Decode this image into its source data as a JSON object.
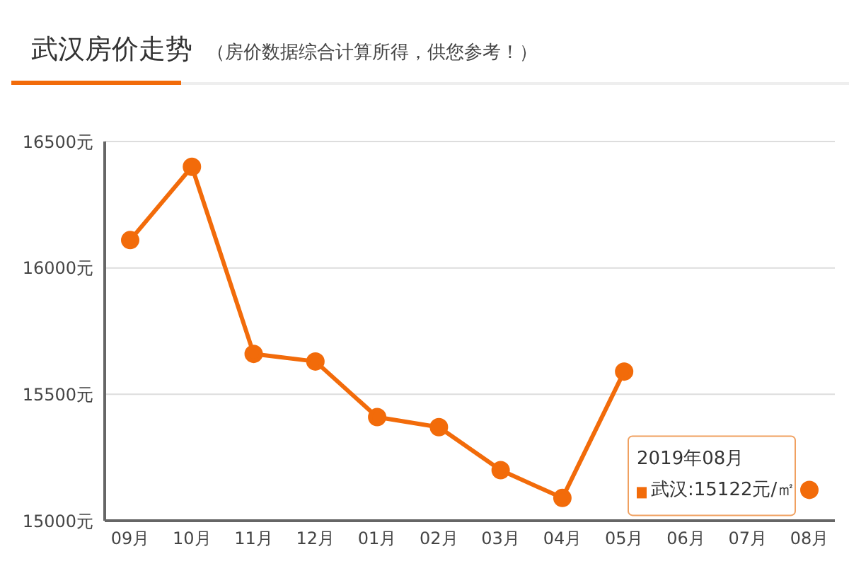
{
  "chart_data": {
    "type": "line",
    "title": "武汉房价走势",
    "subtitle": "（房价数据综合计算所得，供您参考！）",
    "categories": [
      "09月",
      "10月",
      "11月",
      "12月",
      "01月",
      "02月",
      "03月",
      "04月",
      "05月",
      "06月",
      "07月",
      "08月"
    ],
    "series": [
      {
        "color": "#f26b0a",
        "values": [
          16110,
          16400,
          15660,
          15630,
          15410,
          15370,
          15200,
          15090,
          15590,
          null,
          null,
          15122
        ]
      }
    ],
    "ylim": [
      15000,
      16500
    ],
    "yticks": [
      {
        "value": 15000,
        "label": "15000元"
      },
      {
        "value": 15500,
        "label": "15500元"
      },
      {
        "value": 16000,
        "label": "16000元"
      },
      {
        "value": 16500,
        "label": "16500元"
      }
    ],
    "grid": "y",
    "marker": "circle",
    "line_style": "solid",
    "legend": false,
    "annotations": [
      "2019年08月",
      "武汉:15122元/㎡"
    ]
  }
}
